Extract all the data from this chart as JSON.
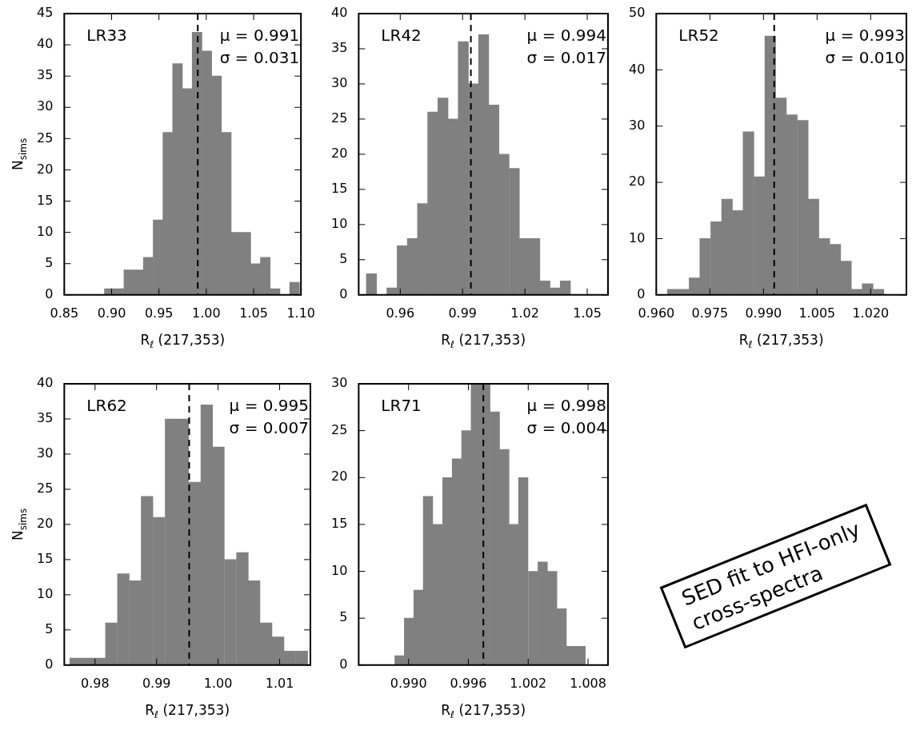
{
  "chart_data": [
    {
      "type": "histogram",
      "xlabel": "R$_{ℓ}$ (217,353)",
      "ylabel": "N$_{sims}$",
      "color": "#808080",
      "bins": [
        0.8924,
        0.9027,
        0.913,
        0.9233,
        0.9336,
        0.9439,
        0.9542,
        0.9645,
        0.9748,
        0.9851,
        0.9954,
        1.0057,
        1.016,
        1.0263,
        1.0366,
        1.0469,
        1.0572,
        1.0675,
        1.0778,
        1.0881,
        1.0984
      ],
      "values": [
        1,
        1,
        4,
        4,
        6,
        12,
        26,
        37,
        33,
        42,
        39,
        35,
        26,
        10,
        10,
        5,
        6,
        1,
        0,
        2
      ],
      "xlim": [
        0.85,
        1.1
      ],
      "xticks": [
        0.85,
        {
          "value": 0.9,
          "label": "0.90"
        },
        0.95,
        {
          "value": 1.0,
          "label": "1.00"
        },
        1.05,
        {
          "value": 1.1,
          "label": "1.10"
        }
      ],
      "ylim": [
        0,
        45
      ],
      "yticks": [
        0,
        5,
        10,
        15,
        20,
        25,
        30,
        35,
        40,
        45
      ],
      "ref_lines": [
        {
          "axis": "x",
          "value": 0.991,
          "color": "#000000",
          "line_style": "dashed"
        }
      ],
      "annotations": [
        "LR33",
        "μ = 0.991",
        "σ = 0.031"
      ]
    },
    {
      "type": "histogram",
      "xlabel": "R$_{ℓ}$ (217,353)",
      "color": "#808080",
      "bins": [
        0.9437,
        0.9486,
        0.9535,
        0.9585,
        0.9634,
        0.9683,
        0.9732,
        0.9781,
        0.983,
        0.9879,
        0.9928,
        0.9977,
        1.0026,
        1.0075,
        1.0124,
        1.0174,
        1.0223,
        1.0272,
        1.0321,
        1.037,
        1.0419
      ],
      "values": [
        3,
        0,
        1,
        7,
        8,
        13,
        26,
        28,
        25,
        36,
        30,
        37,
        27,
        20,
        18,
        8,
        8,
        2,
        1,
        2
      ],
      "xlim": [
        0.94,
        1.06
      ],
      "xticks": [
        0.96,
        0.99,
        1.02,
        1.05
      ],
      "ylim": [
        0,
        40
      ],
      "yticks": [
        0,
        5,
        10,
        15,
        20,
        25,
        30,
        35,
        40
      ],
      "ref_lines": [
        {
          "axis": "x",
          "value": 0.994,
          "color": "#000000",
          "line_style": "dashed"
        }
      ],
      "annotations": [
        "LR42",
        "μ = 0.994",
        "σ = 0.017"
      ]
    },
    {
      "type": "histogram",
      "xlabel": "R$_{ℓ}$ (217,353)",
      "color": "#808080",
      "bins": [
        0.9631,
        0.9661,
        0.9692,
        0.9722,
        0.9752,
        0.9783,
        0.9813,
        0.9843,
        0.9873,
        0.9904,
        0.9934,
        0.9964,
        0.9995,
        1.0025,
        1.0055,
        1.0086,
        1.0116,
        1.0146,
        1.0176,
        1.0207,
        1.0237
      ],
      "values": [
        1,
        1,
        3,
        10,
        13,
        17,
        15,
        29,
        21,
        46,
        35,
        32,
        31,
        17,
        10,
        9,
        6,
        1,
        2,
        1
      ],
      "xlim": [
        0.96,
        1.03
      ],
      "xticks": [
        {
          "value": 0.96,
          "label": "0.960"
        },
        0.975,
        {
          "value": 0.99,
          "label": "0.990"
        },
        1.005,
        {
          "value": 1.02,
          "label": "1.020"
        }
      ],
      "ylim": [
        0,
        50
      ],
      "yticks": [
        0,
        10,
        20,
        30,
        40,
        50
      ],
      "ref_lines": [
        {
          "axis": "x",
          "value": 0.993,
          "color": "#000000",
          "line_style": "dashed"
        }
      ],
      "annotations": [
        "LR52",
        "μ = 0.993",
        "σ = 0.010"
      ]
    },
    {
      "type": "histogram",
      "xlabel": "R$_{ℓ}$ (217,353)",
      "ylabel": "N$_{sims}$",
      "color": "#808080",
      "bins": [
        0.9759,
        0.9778,
        0.9798,
        0.9817,
        0.9836,
        0.9856,
        0.9875,
        0.9894,
        0.9914,
        0.9933,
        0.9952,
        0.9972,
        0.9991,
        1.001,
        1.003,
        1.0049,
        1.0068,
        1.0088,
        1.0107,
        1.0126,
        1.0146
      ],
      "values": [
        1,
        1,
        1,
        6,
        13,
        12,
        24,
        21,
        35,
        35,
        26,
        37,
        31,
        15,
        16,
        12,
        6,
        4,
        2,
        2
      ],
      "xlim": [
        0.975,
        1.015
      ],
      "xticks": [
        0.98,
        0.99,
        {
          "value": 1.0,
          "label": "1.00"
        },
        1.01
      ],
      "ylim": [
        0,
        40
      ],
      "yticks": [
        0,
        5,
        10,
        15,
        20,
        25,
        30,
        35,
        40
      ],
      "ref_lines": [
        {
          "axis": "x",
          "value": 0.9953,
          "color": "#000000",
          "line_style": "dashed"
        }
      ],
      "annotations": [
        "LR62",
        "μ = 0.995",
        "σ = 0.007"
      ]
    },
    {
      "type": "histogram",
      "xlabel": "R$_{ℓ}$ (217,353)",
      "color": "#808080",
      "bins": [
        0.9886,
        0.9896,
        0.9905,
        0.9915,
        0.9924,
        0.9934,
        0.9944,
        0.9953,
        0.9963,
        0.9972,
        0.9982,
        0.9991,
        1.0001,
        1.001,
        1.002,
        1.003,
        1.0039,
        1.0049,
        1.0058,
        1.0068,
        1.0077
      ],
      "values": [
        1,
        5,
        8,
        18,
        15,
        20,
        22,
        25,
        30,
        30,
        27,
        23,
        15,
        20,
        10,
        11,
        10,
        6,
        2,
        2
      ],
      "xlim": [
        0.985,
        1.01
      ],
      "xticks": [
        {
          "value": 0.99,
          "label": "0.990"
        },
        0.996,
        1.002,
        1.008
      ],
      "ylim": [
        0,
        30
      ],
      "yticks": [
        0,
        5,
        10,
        15,
        20,
        25,
        30
      ],
      "ref_lines": [
        {
          "axis": "x",
          "value": 0.9975,
          "color": "#000000",
          "line_style": "dashed"
        }
      ],
      "annotations": [
        "LR71",
        "μ = 0.998",
        "σ = 0.004"
      ]
    },
    {
      "type": "other",
      "annotations": [
        "SED fit to HFI-only",
        "cross-spectra"
      ]
    }
  ]
}
